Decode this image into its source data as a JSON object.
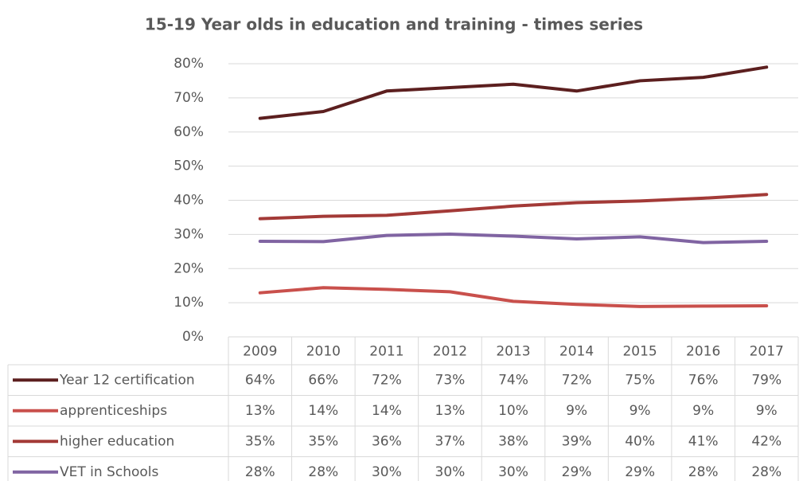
{
  "chart_data": {
    "type": "line",
    "title": "15-19 Year olds in education and training - times series",
    "categories": [
      "2009",
      "2010",
      "2011",
      "2012",
      "2013",
      "2014",
      "2015",
      "2016",
      "2017"
    ],
    "series": [
      {
        "name": "Year 12 certification",
        "color": "#5c1f1f",
        "values": [
          64,
          66,
          72,
          73,
          74,
          72,
          75,
          76,
          79
        ],
        "value_labels": [
          "64%",
          "66%",
          "72%",
          "73%",
          "74%",
          "72%",
          "75%",
          "76%",
          "79%"
        ]
      },
      {
        "name": "apprenticeships",
        "color": "#c9504c",
        "values": [
          12.9,
          14.4,
          13.9,
          13.2,
          10.4,
          9.5,
          8.9,
          9.0,
          9.1
        ],
        "value_labels": [
          "13%",
          "14%",
          "14%",
          "13%",
          "10%",
          "9%",
          "9%",
          "9%",
          "9%"
        ]
      },
      {
        "name": "higher education",
        "color": "#a33a37",
        "values": [
          34.6,
          35.3,
          35.6,
          36.9,
          38.3,
          39.3,
          39.8,
          40.6,
          41.7
        ],
        "value_labels": [
          "35%",
          "35%",
          "36%",
          "37%",
          "38%",
          "39%",
          "40%",
          "41%",
          "42%"
        ]
      },
      {
        "name": "VET in Schools",
        "color": "#8064a2",
        "values": [
          28.0,
          27.9,
          29.7,
          30.1,
          29.5,
          28.7,
          29.3,
          27.6,
          28.0
        ],
        "value_labels": [
          "28%",
          "28%",
          "30%",
          "30%",
          "30%",
          "29%",
          "29%",
          "28%",
          "28%"
        ]
      }
    ],
    "ylim": [
      0,
      80
    ],
    "yticks": [
      {
        "value": 0,
        "label": "0%"
      },
      {
        "value": 10,
        "label": "10%"
      },
      {
        "value": 20,
        "label": "20%"
      },
      {
        "value": 30,
        "label": "30%"
      },
      {
        "value": 40,
        "label": "40%"
      },
      {
        "value": 50,
        "label": "50%"
      },
      {
        "value": 60,
        "label": "60%"
      },
      {
        "value": 70,
        "label": "70%"
      },
      {
        "value": 80,
        "label": "80%"
      }
    ],
    "grid": true
  }
}
